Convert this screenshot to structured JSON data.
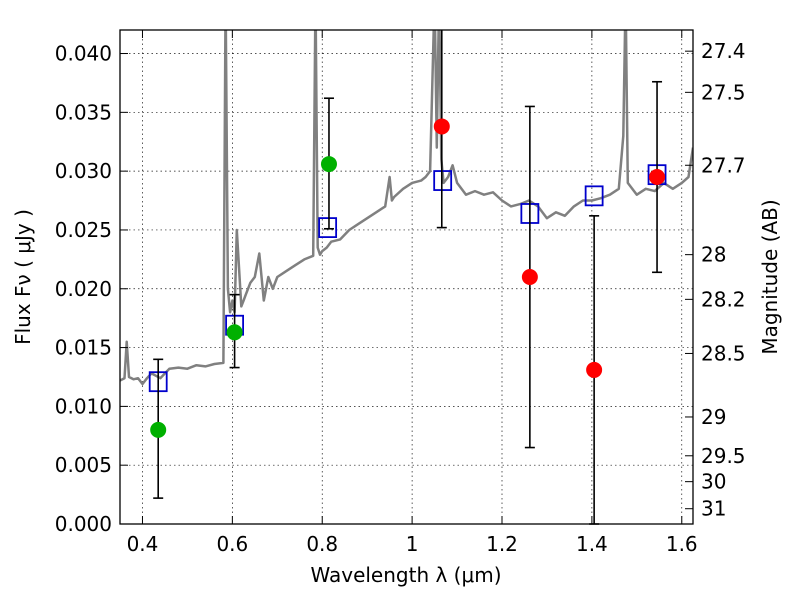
{
  "chart_data": {
    "type": "scatter",
    "xlabel": "Wavelength  λ (μm)",
    "ylabel": "Flux  Fν  ( μJy )",
    "y2label": "Magnitude (AB)",
    "xlim": [
      0.35,
      1.625
    ],
    "ylim": [
      0.0,
      0.042
    ],
    "grid": true,
    "x_ticks": [
      {
        "value": 0.4,
        "label": "0.4"
      },
      {
        "value": 0.6,
        "label": "0.6"
      },
      {
        "value": 0.8,
        "label": "0.8"
      },
      {
        "value": 1.0,
        "label": "1"
      },
      {
        "value": 1.2,
        "label": "1.2"
      },
      {
        "value": 1.4,
        "label": "1.4"
      },
      {
        "value": 1.6,
        "label": "1.6"
      }
    ],
    "y_ticks": [
      {
        "value": 0.0,
        "label": "0.000"
      },
      {
        "value": 0.005,
        "label": "0.005"
      },
      {
        "value": 0.01,
        "label": "0.010"
      },
      {
        "value": 0.015,
        "label": "0.015"
      },
      {
        "value": 0.02,
        "label": "0.020"
      },
      {
        "value": 0.025,
        "label": "0.025"
      },
      {
        "value": 0.03,
        "label": "0.030"
      },
      {
        "value": 0.035,
        "label": "0.035"
      },
      {
        "value": 0.04,
        "label": "0.040"
      }
    ],
    "y2_ticks": [
      {
        "label": "27.4",
        "flux": 0.0402
      },
      {
        "label": "27.5",
        "flux": 0.0367
      },
      {
        "label": "27.7",
        "flux": 0.0305
      },
      {
        "label": "28",
        "flux": 0.0229
      },
      {
        "label": "28.2",
        "flux": 0.0191
      },
      {
        "label": "28.5",
        "flux": 0.0145
      },
      {
        "label": "29",
        "flux": 0.0091
      },
      {
        "label": "29.5",
        "flux": 0.0058
      },
      {
        "label": "30",
        "flux": 0.0036
      },
      {
        "label": "31",
        "flux": 0.0013
      }
    ],
    "spectrum": {
      "color": "#808080",
      "x": [
        0.35,
        0.36,
        0.365,
        0.37,
        0.38,
        0.39,
        0.4,
        0.41,
        0.42,
        0.43,
        0.44,
        0.45,
        0.46,
        0.48,
        0.5,
        0.52,
        0.54,
        0.56,
        0.58,
        0.585,
        0.59,
        0.595,
        0.6,
        0.605,
        0.61,
        0.62,
        0.625,
        0.63,
        0.64,
        0.65,
        0.66,
        0.67,
        0.68,
        0.69,
        0.7,
        0.72,
        0.74,
        0.76,
        0.78,
        0.785,
        0.79,
        0.795,
        0.8,
        0.81,
        0.82,
        0.84,
        0.86,
        0.88,
        0.9,
        0.92,
        0.94,
        0.95,
        0.955,
        0.96,
        0.98,
        1.0,
        1.02,
        1.03,
        1.04,
        1.05,
        1.055,
        1.06,
        1.065,
        1.07,
        1.08,
        1.09,
        1.1,
        1.12,
        1.14,
        1.16,
        1.18,
        1.2,
        1.22,
        1.24,
        1.26,
        1.28,
        1.3,
        1.32,
        1.34,
        1.36,
        1.38,
        1.4,
        1.42,
        1.44,
        1.46,
        1.47,
        1.475,
        1.48,
        1.5,
        1.52,
        1.54,
        1.56,
        1.58,
        1.6,
        1.615,
        1.625
      ],
      "y": [
        0.0122,
        0.0124,
        0.0155,
        0.0125,
        0.0123,
        0.0124,
        0.0119,
        0.0124,
        0.0128,
        0.0126,
        0.0124,
        0.0128,
        0.0132,
        0.0133,
        0.0132,
        0.0135,
        0.0134,
        0.0136,
        0.0137,
        0.045,
        0.02,
        0.018,
        0.019,
        0.018,
        0.025,
        0.0185,
        0.019,
        0.0195,
        0.0205,
        0.021,
        0.023,
        0.019,
        0.021,
        0.02,
        0.021,
        0.0215,
        0.022,
        0.0225,
        0.0228,
        0.045,
        0.0235,
        0.0229,
        0.0232,
        0.0235,
        0.024,
        0.0242,
        0.025,
        0.0255,
        0.026,
        0.0265,
        0.027,
        0.0295,
        0.0275,
        0.0278,
        0.0285,
        0.029,
        0.0292,
        0.0295,
        0.03,
        0.045,
        0.032,
        0.045,
        0.031,
        0.029,
        0.0295,
        0.0305,
        0.029,
        0.028,
        0.0283,
        0.028,
        0.0282,
        0.0275,
        0.027,
        0.0272,
        0.0275,
        0.027,
        0.026,
        0.0265,
        0.0262,
        0.027,
        0.0275,
        0.0275,
        0.0277,
        0.028,
        0.0285,
        0.033,
        0.045,
        0.029,
        0.028,
        0.0285,
        0.0283,
        0.029,
        0.0285,
        0.029,
        0.0295,
        0.032
      ]
    },
    "model_points": {
      "marker": "open-square",
      "color": "#0000cc",
      "x": [
        0.435,
        0.605,
        0.812,
        1.068,
        1.262,
        1.405,
        1.545
      ],
      "y": [
        0.0121,
        0.0169,
        0.0252,
        0.0292,
        0.0264,
        0.0279,
        0.0297
      ]
    },
    "observed_points": {
      "x": [
        0.435,
        0.605,
        0.815,
        1.066,
        1.262,
        1.405,
        1.545
      ],
      "y": [
        0.008,
        0.0163,
        0.0306,
        0.0338,
        0.021,
        0.0131,
        0.0295
      ],
      "yerr_low": [
        0.0058,
        0.003,
        0.0055,
        0.0086,
        0.0145,
        0.0131,
        0.0081
      ],
      "yerr_high": [
        0.006,
        0.0032,
        0.0056,
        0.0086,
        0.0145,
        0.0131,
        0.0081
      ],
      "colors": [
        "#00b000",
        "#00b000",
        "#00b000",
        "#ff0000",
        "#ff0000",
        "#ff0000",
        "#ff0000"
      ]
    }
  }
}
